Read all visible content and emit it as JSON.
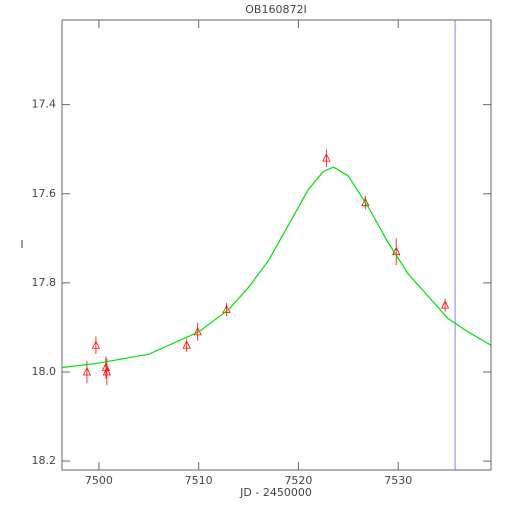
{
  "chart_data": {
    "type": "scatter",
    "title": "OB160872I",
    "x_label": "JD - 2450000",
    "y_label": "I",
    "xlim": [
      7496.3,
      7539.3
    ],
    "ylim": [
      18.22,
      17.21
    ],
    "inverted_y": true,
    "xticks": [
      7500,
      7510,
      7520,
      7530
    ],
    "yticks": [
      17.4,
      17.6,
      17.8,
      {
        "value": 18.0,
        "label": "18.0"
      },
      18.2
    ],
    "series": [
      {
        "color": "#ff0000",
        "x": [
          7498.8,
          7499.7,
          7500.7,
          7500.8,
          7508.8,
          7509.9,
          7512.8,
          7522.8,
          7526.7,
          7529.8,
          7534.7
        ],
        "values": [
          18.0,
          17.94,
          17.99,
          18.0,
          17.94,
          17.91,
          17.86,
          17.52,
          17.62,
          17.73,
          17.85
        ],
        "errors": [
          0.025,
          0.02,
          0.025,
          0.03,
          0.015,
          0.02,
          0.015,
          0.02,
          0.015,
          0.03,
          0.015
        ]
      },
      {
        "color": "#00e000",
        "line": true,
        "x": [
          7496.3,
          7500,
          7505,
          7510,
          7513,
          7515,
          7517,
          7519,
          7521,
          7522.5,
          7523.5,
          7525,
          7527,
          7529,
          7531,
          7533,
          7535,
          7537,
          7539.3
        ],
        "values": [
          17.99,
          17.98,
          17.96,
          17.91,
          17.86,
          17.81,
          17.75,
          17.67,
          17.59,
          17.55,
          17.54,
          17.56,
          17.63,
          17.71,
          17.78,
          17.83,
          17.88,
          17.91,
          17.94
        ]
      }
    ],
    "vline": {
      "x": 7535.7,
      "color": "#8080ff"
    }
  }
}
